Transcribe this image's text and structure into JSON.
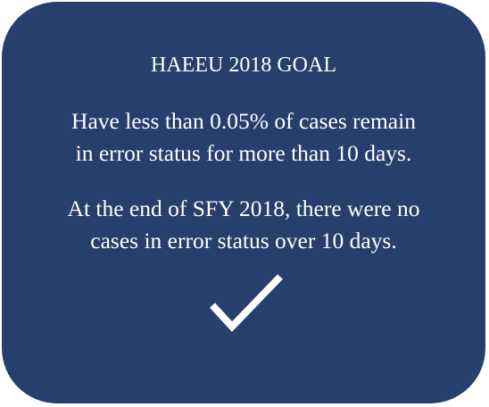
{
  "card": {
    "title": "HAEEU 2018 GOAL",
    "goal": [
      "Have less than 0.05% of cases remain",
      "in error status for more than 10 days."
    ],
    "result": [
      "At the end of SFY 2018, there were no",
      "cases in error status over 10 days."
    ]
  }
}
